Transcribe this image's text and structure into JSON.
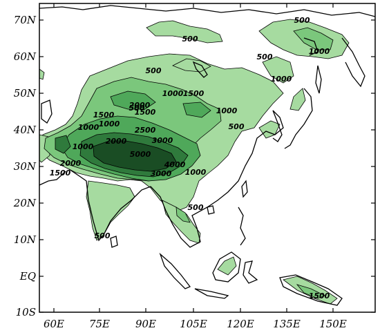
{
  "map": {
    "lat_labels": [
      "70N",
      "60N",
      "50N",
      "40N",
      "30N",
      "20N",
      "10N",
      "EQ",
      "10S"
    ],
    "lon_labels": [
      "60E",
      "75E",
      "90E",
      "105E",
      "120E",
      "135E",
      "150E"
    ],
    "extent": {
      "lon": [
        58,
        166
      ],
      "lat": [
        -10,
        75
      ]
    },
    "elevation_levels": [
      500,
      1000,
      1500,
      2000,
      2500,
      3000,
      4000,
      5000
    ],
    "shading_colors": {
      "500": "#a6dba0",
      "1000": "#7bc77c",
      "2000": "#4fa85a",
      "3000": "#2f7a3c",
      "5000": "#1a4d24"
    },
    "coastline_color": "#000000",
    "contour_labels": [
      "500",
      "500",
      "1000",
      "500",
      "1000",
      "500",
      "500",
      "1000",
      "1500",
      "2000",
      "1000",
      "500",
      "1000",
      "1500",
      "1500",
      "2500",
      "1000",
      "2000",
      "3000",
      "1000",
      "5000",
      "2000",
      "4000",
      "1500",
      "3000",
      "1000",
      "500",
      "500",
      "1500"
    ]
  }
}
